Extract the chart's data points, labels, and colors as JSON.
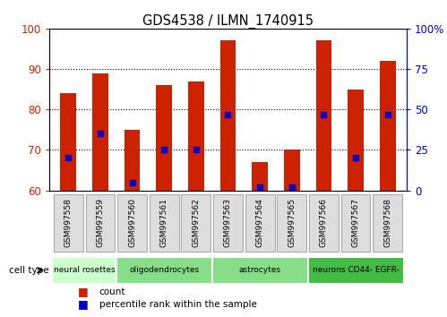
{
  "title": "GDS4538 / ILMN_1740915",
  "samples": [
    "GSM997558",
    "GSM997559",
    "GSM997560",
    "GSM997561",
    "GSM997562",
    "GSM997563",
    "GSM997564",
    "GSM997565",
    "GSM997566",
    "GSM997567",
    "GSM997568"
  ],
  "count_values": [
    84,
    89,
    75,
    86,
    87,
    97,
    67,
    70,
    97,
    85,
    92
  ],
  "percentile_values": [
    20,
    35,
    5,
    25,
    25,
    47,
    2,
    2,
    47,
    20,
    47
  ],
  "ylim_left": [
    60,
    100
  ],
  "ylim_right": [
    0,
    100
  ],
  "yticks_left": [
    60,
    70,
    80,
    90,
    100
  ],
  "yticks_right": [
    0,
    25,
    50,
    75,
    100
  ],
  "ytick_labels_right": [
    "0",
    "25",
    "50",
    "75",
    "100%"
  ],
  "cell_types": [
    {
      "label": "neural rosettes",
      "start": 0,
      "end": 1,
      "color": "#ccffcc"
    },
    {
      "label": "oligodendrocytes",
      "start": 2,
      "end": 4,
      "color": "#88dd88"
    },
    {
      "label": "astrocytes",
      "start": 5,
      "end": 7,
      "color": "#88dd88"
    },
    {
      "label": "neurons CD44- EGFR-",
      "start": 8,
      "end": 10,
      "color": "#44bb44"
    }
  ],
  "bar_color": "#cc2200",
  "dot_color": "#0000cc",
  "bg_color": "#ffffff",
  "left_axis_color": "#cc2200",
  "right_axis_color": "#0000cc",
  "bar_width": 0.5,
  "label_box_color": "#dddddd",
  "label_box_edgecolor": "#aaaaaa"
}
